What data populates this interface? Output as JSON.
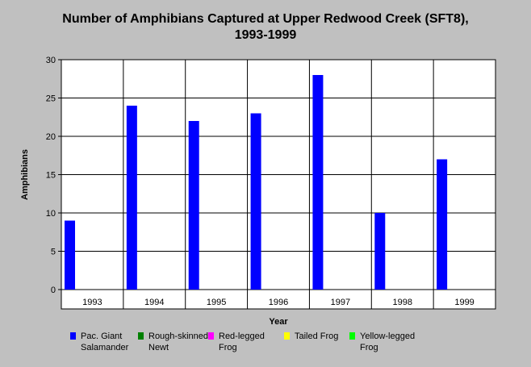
{
  "chart_data": {
    "type": "bar",
    "title_line1": "Number of Amphibians Captured at Upper Redwood Creek (SFT8),",
    "title_line2": "1993-1999",
    "xlabel": "Year",
    "ylabel": "Amphibians",
    "ylim": [
      0,
      30
    ],
    "yticks": [
      "0",
      "5",
      "10",
      "15",
      "20",
      "25",
      "30"
    ],
    "categories": [
      "1993",
      "1994",
      "1995",
      "1996",
      "1997",
      "1998",
      "1999"
    ],
    "grid": true,
    "legend_position": "bottom",
    "series": [
      {
        "name_line1": "Pac. Giant",
        "name_line2": "Salamander",
        "color": "#0000ff",
        "values": [
          9,
          24,
          22,
          23,
          28,
          10,
          17
        ]
      },
      {
        "name_line1": "Rough-skinned",
        "name_line2": "Newt",
        "color": "#008000",
        "values": [
          0,
          0,
          0,
          0,
          0,
          0,
          0
        ]
      },
      {
        "name_line1": "Red-legged",
        "name_line2": "Frog",
        "color": "#ff00ff",
        "values": [
          0,
          0,
          0,
          0,
          0,
          0,
          0
        ]
      },
      {
        "name_line1": "Tailed Frog",
        "name_line2": "",
        "color": "#ffff00",
        "values": [
          0,
          0,
          0,
          0,
          0,
          0,
          0
        ]
      },
      {
        "name_line1": "Yellow-legged",
        "name_line2": "Frog",
        "color": "#00ff00",
        "values": [
          0,
          0,
          0,
          0,
          0,
          0,
          0
        ]
      }
    ]
  }
}
